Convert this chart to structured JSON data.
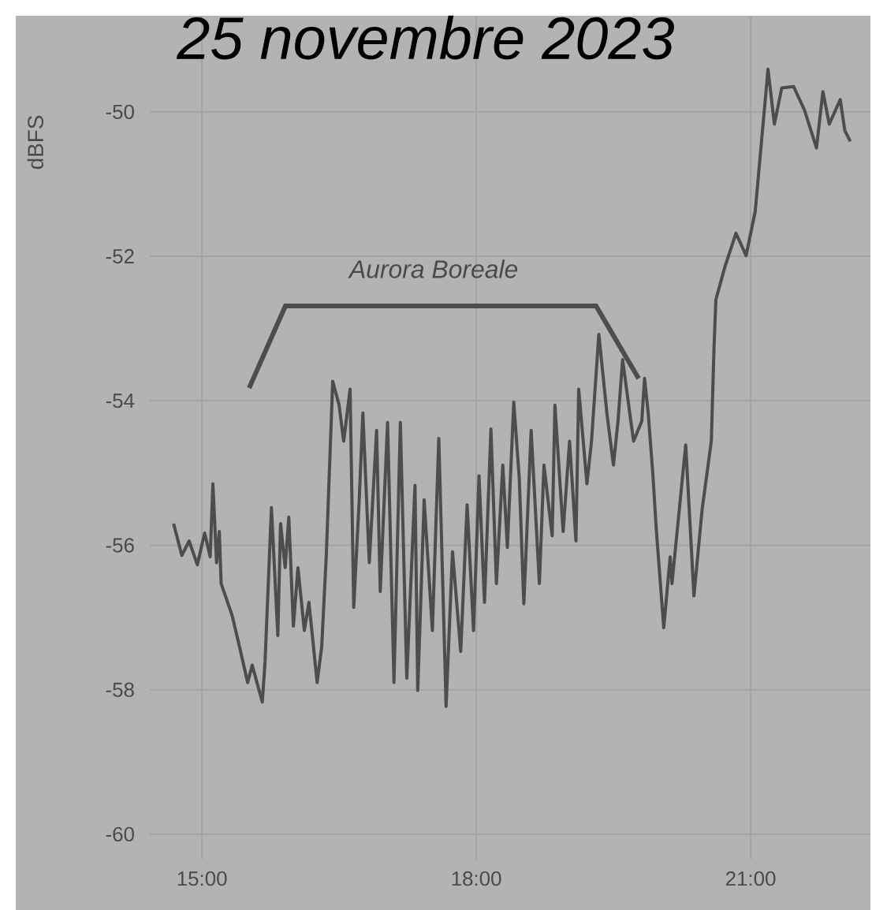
{
  "chart_data": {
    "type": "line",
    "title": "25 novembre 2023",
    "ylabel": "dBFS",
    "annotations": [
      "Aurora Boreale"
    ],
    "x": [
      14.69,
      14.78,
      14.86,
      14.95,
      15.03,
      15.09,
      15.12,
      15.16,
      15.19,
      15.21,
      15.33,
      15.41,
      15.5,
      15.55,
      15.66,
      15.69,
      15.76,
      15.83,
      15.86,
      15.91,
      15.95,
      16.0,
      16.05,
      16.12,
      16.17,
      16.26,
      16.31,
      16.36,
      16.43,
      16.5,
      16.55,
      16.62,
      16.66,
      16.72,
      16.76,
      16.83,
      16.91,
      16.95,
      17.03,
      17.1,
      17.17,
      17.24,
      17.33,
      17.36,
      17.43,
      17.52,
      17.59,
      17.67,
      17.74,
      17.83,
      17.9,
      17.97,
      18.03,
      18.09,
      18.16,
      18.22,
      18.29,
      18.34,
      18.41,
      18.47,
      18.52,
      18.6,
      18.69,
      18.74,
      18.83,
      18.86,
      18.95,
      19.02,
      19.09,
      19.12,
      19.21,
      19.26,
      19.34,
      19.43,
      19.5,
      19.55,
      19.6,
      19.69,
      19.72,
      19.81,
      19.84,
      19.88,
      19.93,
      19.97,
      20.05,
      20.12,
      20.14,
      20.29,
      20.38,
      20.47,
      20.57,
      20.6,
      20.62,
      20.72,
      20.84,
      20.95,
      21.05,
      21.19,
      21.26,
      21.34,
      21.47,
      21.59,
      21.72,
      21.79,
      21.86,
      21.98,
      22.03,
      22.09
    ],
    "values": [
      -55.7,
      -56.14,
      -55.94,
      -56.27,
      -55.83,
      -56.16,
      -55.15,
      -56.24,
      -55.81,
      -56.53,
      -56.97,
      -57.4,
      -57.9,
      -57.66,
      -58.17,
      -57.62,
      -55.48,
      -57.25,
      -55.7,
      -56.31,
      -55.61,
      -57.12,
      -56.31,
      -57.18,
      -56.79,
      -57.9,
      -57.4,
      -56.14,
      -53.73,
      -54.06,
      -54.56,
      -53.84,
      -56.86,
      -55.37,
      -54.17,
      -56.24,
      -54.41,
      -56.64,
      -54.3,
      -57.9,
      -54.3,
      -57.84,
      -55.17,
      -58.01,
      -55.37,
      -57.18,
      -54.52,
      -58.23,
      -56.09,
      -57.47,
      -55.44,
      -57.18,
      -55.04,
      -56.79,
      -54.39,
      -56.53,
      -54.89,
      -56.03,
      -54.02,
      -55.07,
      -56.81,
      -54.41,
      -56.53,
      -54.89,
      -55.87,
      -54.06,
      -55.81,
      -54.56,
      -55.94,
      -53.84,
      -55.15,
      -54.56,
      -53.08,
      -54.19,
      -54.89,
      -54.28,
      -53.43,
      -54.28,
      -54.56,
      -54.28,
      -53.69,
      -54.17,
      -55.0,
      -55.81,
      -57.14,
      -56.16,
      -56.53,
      -54.61,
      -56.7,
      -55.5,
      -54.56,
      -53.25,
      -52.6,
      -52.14,
      -51.68,
      -51.99,
      -51.38,
      -49.41,
      -50.17,
      -49.67,
      -49.65,
      -49.98,
      -50.5,
      -49.72,
      -50.17,
      -49.83,
      -50.26,
      -50.41
    ],
    "color": "#4d4d4d",
    "xlim": [
      14.43,
      22.31
    ],
    "ylim": [
      -60.35,
      -48.67
    ],
    "xticks": [
      {
        "value": 15,
        "label": "15:00"
      },
      {
        "value": 18,
        "label": "18:00"
      },
      {
        "value": 21,
        "label": "21:00"
      }
    ],
    "yticks": [
      -60,
      -58,
      -56,
      -54,
      -52,
      -50
    ],
    "grid": true,
    "line_style": "solid",
    "marker": "none"
  }
}
